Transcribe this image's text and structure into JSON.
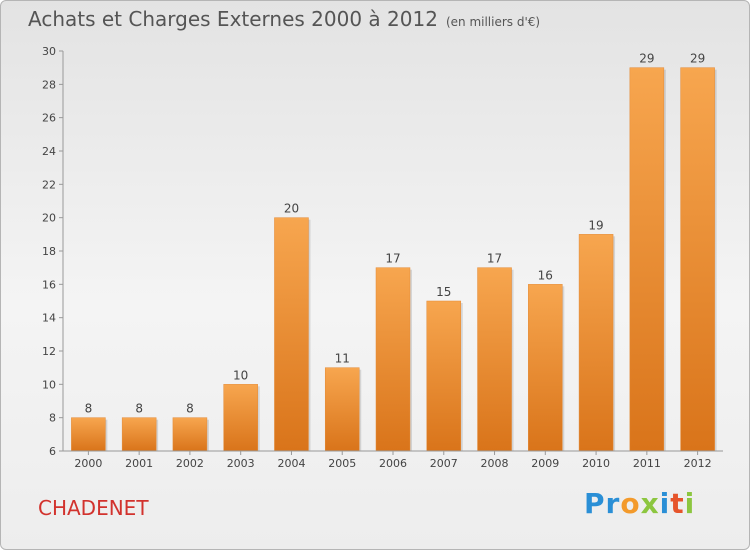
{
  "header": {
    "title": "Achats et Charges Externes 2000 à 2012",
    "unit": "(en milliers d'€)"
  },
  "footer": {
    "city": "CHADENET"
  },
  "logo": {
    "text": "Proxiti",
    "letters": [
      {
        "char": "P",
        "color": "#2a8fd6"
      },
      {
        "char": "r",
        "color": "#2a8fd6"
      },
      {
        "char": "o",
        "color": "#f39a2b"
      },
      {
        "char": "x",
        "color": "#8cc63f"
      },
      {
        "char": "i",
        "color": "#2a8fd6"
      },
      {
        "char": "t",
        "color": "#e6542b"
      },
      {
        "char": "i",
        "color": "#8cc63f"
      }
    ]
  },
  "chart_data": {
    "type": "bar",
    "categories": [
      "2000",
      "2001",
      "2002",
      "2003",
      "2004",
      "2005",
      "2006",
      "2007",
      "2008",
      "2009",
      "2010",
      "2011",
      "2012"
    ],
    "values": [
      8,
      8,
      8,
      10,
      20,
      11,
      17,
      15,
      17,
      16,
      19,
      29,
      29
    ],
    "data_labels": [
      "8",
      "8",
      "8",
      "10",
      "20",
      "11",
      "17",
      "15",
      "17",
      "16",
      "19",
      "29",
      "29"
    ],
    "yticks": [
      "6",
      "8",
      "10",
      "12",
      "14",
      "16",
      "18",
      "20",
      "22",
      "24",
      "26",
      "28",
      "30"
    ],
    "ylim": [
      6,
      30
    ],
    "grid": false,
    "bar_color": "#f08c2f"
  }
}
